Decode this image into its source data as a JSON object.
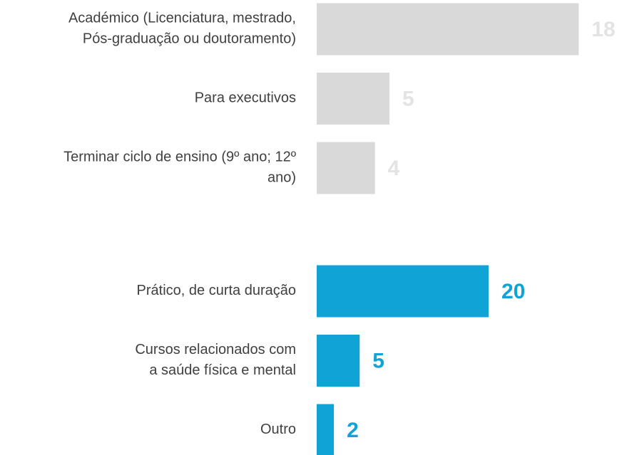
{
  "chart_data": [
    {
      "type": "bar",
      "orientation": "horizontal",
      "color": "#d9d9d9",
      "label_color": "#e3e3e3",
      "categories": [
        [
          "Académico (Licenciatura, mestrado,",
          "Pós-graduação ou doutoramento)"
        ],
        [
          "Para executivos"
        ],
        [
          "Terminar ciclo de ensino (9º ano; 12º",
          "ano)"
        ]
      ],
      "values": [
        18,
        5,
        4
      ],
      "xlim": [
        0,
        19.6
      ]
    },
    {
      "type": "bar",
      "orientation": "horizontal",
      "color": "#0fa3d6",
      "label_color": "#0fa3d6",
      "categories": [
        [
          "Prático, de curta duração"
        ],
        [
          "Cursos relacionados com",
          "a saúde física e mental"
        ],
        [
          "Outro"
        ]
      ],
      "values": [
        20,
        5,
        2
      ],
      "xlim": [
        0,
        33.2
      ]
    }
  ]
}
